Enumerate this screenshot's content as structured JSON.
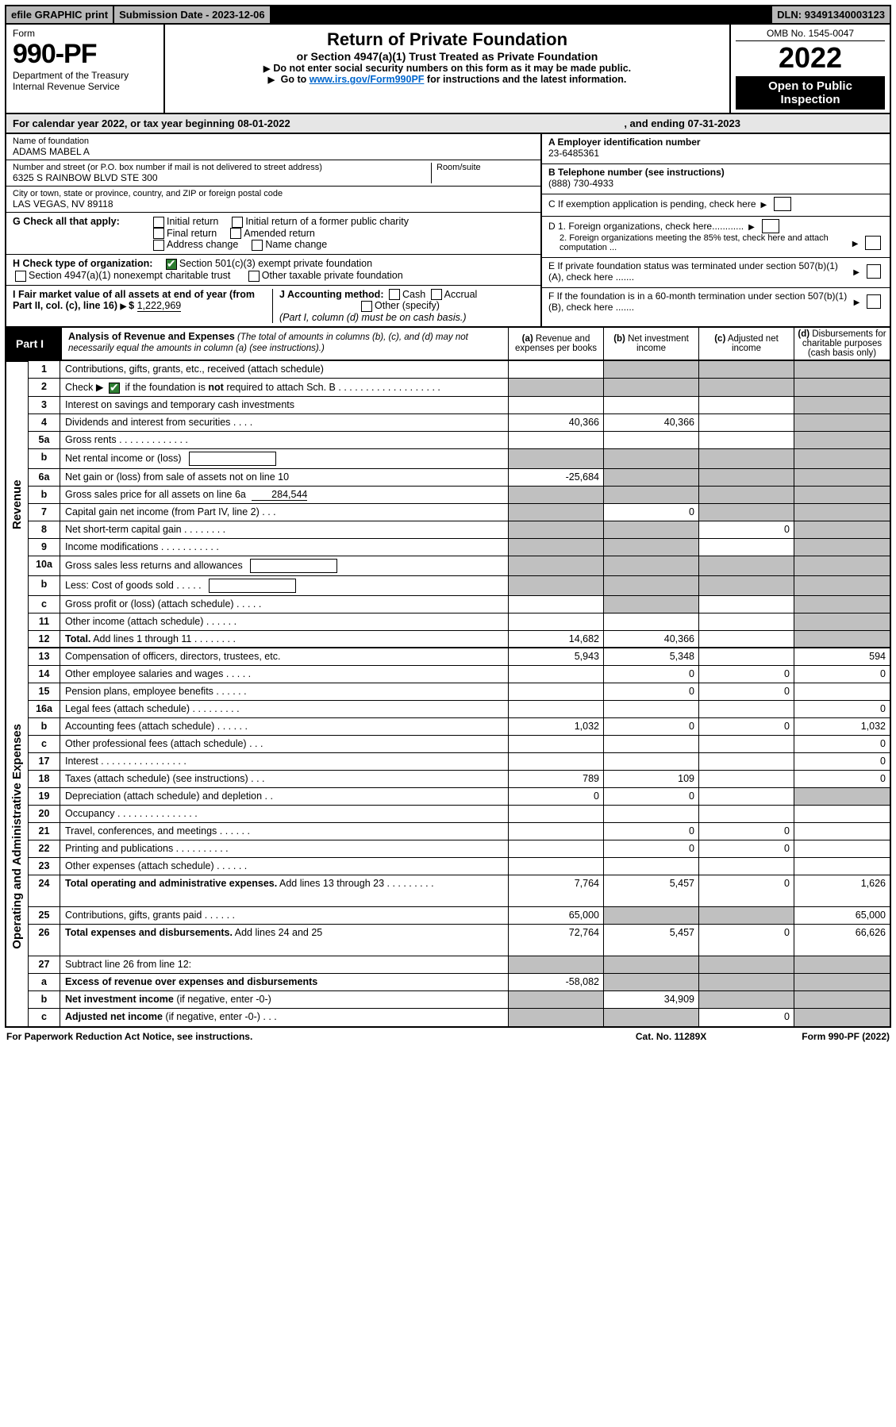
{
  "topbar": {
    "efile": "efile GRAPHIC print",
    "subdate_label": "Submission Date - ",
    "subdate": "2023-12-06",
    "dln_label": "DLN: ",
    "dln": "93491340003123"
  },
  "header": {
    "form_label": "Form",
    "form_no": "990-PF",
    "dept": "Department of the Treasury",
    "irs": "Internal Revenue Service",
    "title": "Return of Private Foundation",
    "subtitle": "or Section 4947(a)(1) Trust Treated as Private Foundation",
    "note1": "Do not enter social security numbers on this form as it may be made public.",
    "note2_pre": "Go to ",
    "note2_link": "www.irs.gov/Form990PF",
    "note2_post": " for instructions and the latest information.",
    "omb": "OMB No. 1545-0047",
    "year": "2022",
    "open": "Open to Public Inspection"
  },
  "calyear": {
    "text1": "For calendar year 2022, or tax year beginning 08-01-2022",
    "text2": ", and ending 07-31-2023"
  },
  "entity": {
    "name_label": "Name of foundation",
    "name": "ADAMS MABEL A",
    "addr_label": "Number and street (or P.O. box number if mail is not delivered to street address)",
    "addr": "6325 S RAINBOW BLVD STE 300",
    "room_label": "Room/suite",
    "city_label": "City or town, state or province, country, and ZIP or foreign postal code",
    "city": "LAS VEGAS, NV  89118",
    "ein_label": "A Employer identification number",
    "ein": "23-6485361",
    "tel_label": "B Telephone number (see instructions)",
    "tel": "(888) 730-4933",
    "c_label": "C If exemption application is pending, check here",
    "d1_label": "D 1. Foreign organizations, check here............",
    "d2_label": "2. Foreign organizations meeting the 85% test, check here and attach computation ...",
    "e_label": "E  If private foundation status was terminated under section 507(b)(1)(A), check here .......",
    "f_label": "F  If the foundation is in a 60-month termination under section 507(b)(1)(B), check here .......",
    "g_label": "G Check all that apply:",
    "g_opts": [
      "Initial return",
      "Final return",
      "Address change",
      "Initial return of a former public charity",
      "Amended return",
      "Name change"
    ],
    "h_label": "H Check type of organization:",
    "h_opts": [
      "Section 501(c)(3) exempt private foundation",
      "Section 4947(a)(1) nonexempt charitable trust",
      "Other taxable private foundation"
    ],
    "i_label": "I Fair market value of all assets at end of year (from Part II, col. (c), line 16)",
    "i_val": "1,222,969",
    "j_label": "J Accounting method:",
    "j_cash": "Cash",
    "j_accrual": "Accrual",
    "j_other": "Other (specify)",
    "j_note": "(Part I, column (d) must be on cash basis.)"
  },
  "part1": {
    "label": "Part I",
    "title": "Analysis of Revenue and Expenses",
    "title_note": " (The total of amounts in columns (b), (c), and (d) may not necessarily equal the amounts in column (a) (see instructions).)",
    "cols": [
      {
        "k": "(a)",
        "t": "Revenue and expenses per books"
      },
      {
        "k": "(b)",
        "t": "Net investment income"
      },
      {
        "k": "(c)",
        "t": "Adjusted net income"
      },
      {
        "k": "(d)",
        "t": "Disbursements for charitable purposes (cash basis only)"
      }
    ]
  },
  "side": {
    "rev": "Revenue",
    "exp": "Operating and Administrative Expenses"
  },
  "rows": [
    {
      "n": "1",
      "d": "Contributions, gifts, grants, etc., received (attach schedule)",
      "a": "",
      "b": "gray",
      "c": "gray",
      "dd": "gray"
    },
    {
      "n": "2",
      "d": "Check ▶ [CK] if the foundation is <b>not</b> required to attach Sch. B  . . . . . . . . . . . . . . . . . . .",
      "a": "gray",
      "b": "gray",
      "c": "gray",
      "dd": "gray",
      "ck": true
    },
    {
      "n": "3",
      "d": "Interest on savings and temporary cash investments",
      "a": "",
      "b": "",
      "c": "",
      "dd": "gray"
    },
    {
      "n": "4",
      "d": "Dividends and interest from securities  . . . .",
      "a": "40,366",
      "b": "40,366",
      "c": "",
      "dd": "gray"
    },
    {
      "n": "5a",
      "d": "Gross rents  . . . . . . . . . . . . .",
      "a": "",
      "b": "",
      "c": "",
      "dd": "gray"
    },
    {
      "n": "b",
      "d": "Net rental income or (loss) [BOX]",
      "a": "gray",
      "b": "gray",
      "c": "gray",
      "dd": "gray"
    },
    {
      "n": "6a",
      "d": "Net gain or (loss) from sale of assets not on line 10",
      "a": "-25,684",
      "b": "gray",
      "c": "gray",
      "dd": "gray"
    },
    {
      "n": "b",
      "d": "Gross sales price for all assets on line 6a [AMT:284,544]",
      "a": "gray",
      "b": "gray",
      "c": "gray",
      "dd": "gray"
    },
    {
      "n": "7",
      "d": "Capital gain net income (from Part IV, line 2)  . . .",
      "a": "gray",
      "b": "0",
      "c": "gray",
      "dd": "gray"
    },
    {
      "n": "8",
      "d": "Net short-term capital gain  . . . . . . . .",
      "a": "gray",
      "b": "gray",
      "c": "0",
      "dd": "gray"
    },
    {
      "n": "9",
      "d": "Income modifications . . . . . . . . . . .",
      "a": "gray",
      "b": "gray",
      "c": "",
      "dd": "gray"
    },
    {
      "n": "10a",
      "d": "Gross sales less returns and allowances [BOX]",
      "a": "gray",
      "b": "gray",
      "c": "gray",
      "dd": "gray"
    },
    {
      "n": "b",
      "d": "Less: Cost of goods sold  . . . . . [BOX]",
      "a": "gray",
      "b": "gray",
      "c": "gray",
      "dd": "gray"
    },
    {
      "n": "c",
      "d": "Gross profit or (loss) (attach schedule)  . . . . .",
      "a": "",
      "b": "gray",
      "c": "",
      "dd": "gray"
    },
    {
      "n": "11",
      "d": "Other income (attach schedule)  . . . . . .",
      "a": "",
      "b": "",
      "c": "",
      "dd": "gray"
    },
    {
      "n": "12",
      "d": "<b>Total.</b> Add lines 1 through 11  . . . . . . . .",
      "a": "14,682",
      "b": "40,366",
      "c": "",
      "dd": "gray",
      "split": true
    },
    {
      "n": "13",
      "d": "Compensation of officers, directors, trustees, etc.",
      "a": "5,943",
      "b": "5,348",
      "c": "",
      "dd": "594"
    },
    {
      "n": "14",
      "d": "Other employee salaries and wages  . . . . .",
      "a": "",
      "b": "0",
      "c": "0",
      "dd": "0"
    },
    {
      "n": "15",
      "d": "Pension plans, employee benefits  . . . . . .",
      "a": "",
      "b": "0",
      "c": "0",
      "dd": ""
    },
    {
      "n": "16a",
      "d": "Legal fees (attach schedule) . . . . . . . . .",
      "a": "",
      "b": "",
      "c": "",
      "dd": "0"
    },
    {
      "n": "b",
      "d": "Accounting fees (attach schedule) . . . . . .",
      "a": "1,032",
      "b": "0",
      "c": "0",
      "dd": "1,032"
    },
    {
      "n": "c",
      "d": "Other professional fees (attach schedule)  . . .",
      "a": "",
      "b": "",
      "c": "",
      "dd": "0"
    },
    {
      "n": "17",
      "d": "Interest . . . . . . . . . . . . . . . .",
      "a": "",
      "b": "",
      "c": "",
      "dd": "0"
    },
    {
      "n": "18",
      "d": "Taxes (attach schedule) (see instructions)  . . .",
      "a": "789",
      "b": "109",
      "c": "",
      "dd": "0"
    },
    {
      "n": "19",
      "d": "Depreciation (attach schedule) and depletion  . .",
      "a": "0",
      "b": "0",
      "c": "",
      "dd": "gray"
    },
    {
      "n": "20",
      "d": "Occupancy . . . . . . . . . . . . . . .",
      "a": "",
      "b": "",
      "c": "",
      "dd": ""
    },
    {
      "n": "21",
      "d": "Travel, conferences, and meetings . . . . . .",
      "a": "",
      "b": "0",
      "c": "0",
      "dd": ""
    },
    {
      "n": "22",
      "d": "Printing and publications . . . . . . . . . .",
      "a": "",
      "b": "0",
      "c": "0",
      "dd": ""
    },
    {
      "n": "23",
      "d": "Other expenses (attach schedule)  . . . . . .",
      "a": "",
      "b": "",
      "c": "",
      "dd": ""
    },
    {
      "n": "24",
      "d": "<b>Total operating and administrative expenses.</b> Add lines 13 through 23  . . . . . . . . .",
      "a": "7,764",
      "b": "5,457",
      "c": "0",
      "dd": "1,626",
      "tall": true
    },
    {
      "n": "25",
      "d": "Contributions, gifts, grants paid  . . . . . .",
      "a": "65,000",
      "b": "gray",
      "c": "gray",
      "dd": "65,000"
    },
    {
      "n": "26",
      "d": "<b>Total expenses and disbursements.</b> Add lines 24 and 25",
      "a": "72,764",
      "b": "5,457",
      "c": "0",
      "dd": "66,626",
      "tall": true
    },
    {
      "n": "27",
      "d": "Subtract line 26 from line 12:",
      "a": "gray",
      "b": "gray",
      "c": "gray",
      "dd": "gray"
    },
    {
      "n": "a",
      "d": "<b>Excess of revenue over expenses and disbursements</b>",
      "a": "-58,082",
      "b": "gray",
      "c": "gray",
      "dd": "gray"
    },
    {
      "n": "b",
      "d": "<b>Net investment income</b> (if negative, enter -0-)",
      "a": "gray",
      "b": "34,909",
      "c": "gray",
      "dd": "gray"
    },
    {
      "n": "c",
      "d": "<b>Adjusted net income</b> (if negative, enter -0-)  . . .",
      "a": "gray",
      "b": "gray",
      "c": "0",
      "dd": "gray"
    }
  ],
  "footer": {
    "left": "For Paperwork Reduction Act Notice, see instructions.",
    "mid": "Cat. No. 11289X",
    "right": "Form 990-PF (2022)"
  }
}
